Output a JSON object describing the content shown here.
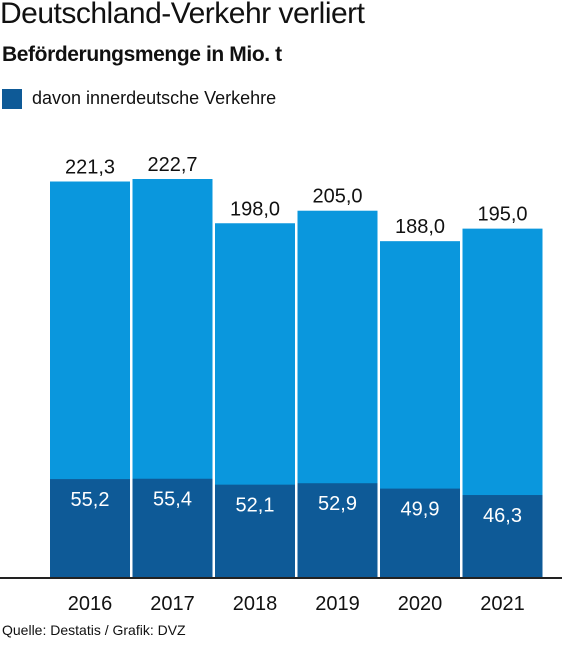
{
  "header": {
    "title": "Deutschland-Verkehr verliert",
    "subtitle": "Beförderungsmenge in Mio. t"
  },
  "legend": {
    "label": "davon innerdeutsche Verkehre"
  },
  "colors": {
    "total": "#0a97dd",
    "domestic": "#0e5a97",
    "axis": "#222222",
    "text_dark": "#111111",
    "text_light": "#ffffff"
  },
  "chart_data": {
    "type": "bar",
    "categories": [
      "2016",
      "2017",
      "2018",
      "2019",
      "2020",
      "2021"
    ],
    "series": [
      {
        "values": [
          221.3,
          222.7,
          198.0,
          205.0,
          188.0,
          195.0
        ]
      },
      {
        "name": "davon innerdeutsche Verkehre",
        "values": [
          55.2,
          55.4,
          52.1,
          52.9,
          49.9,
          46.3
        ]
      }
    ],
    "total_labels": [
      "221,3",
      "222,7",
      "198,0",
      "205,0",
      "188,0",
      "195,0"
    ],
    "domestic_labels": [
      "55,2",
      "55,4",
      "52,1",
      "52,9",
      "49,9",
      "46,3"
    ],
    "ylim": [
      0,
      222.7
    ],
    "grid": false,
    "legend_position": "top-left"
  },
  "footer": {
    "source": "Quelle: Destatis / Grafik: DVZ"
  }
}
